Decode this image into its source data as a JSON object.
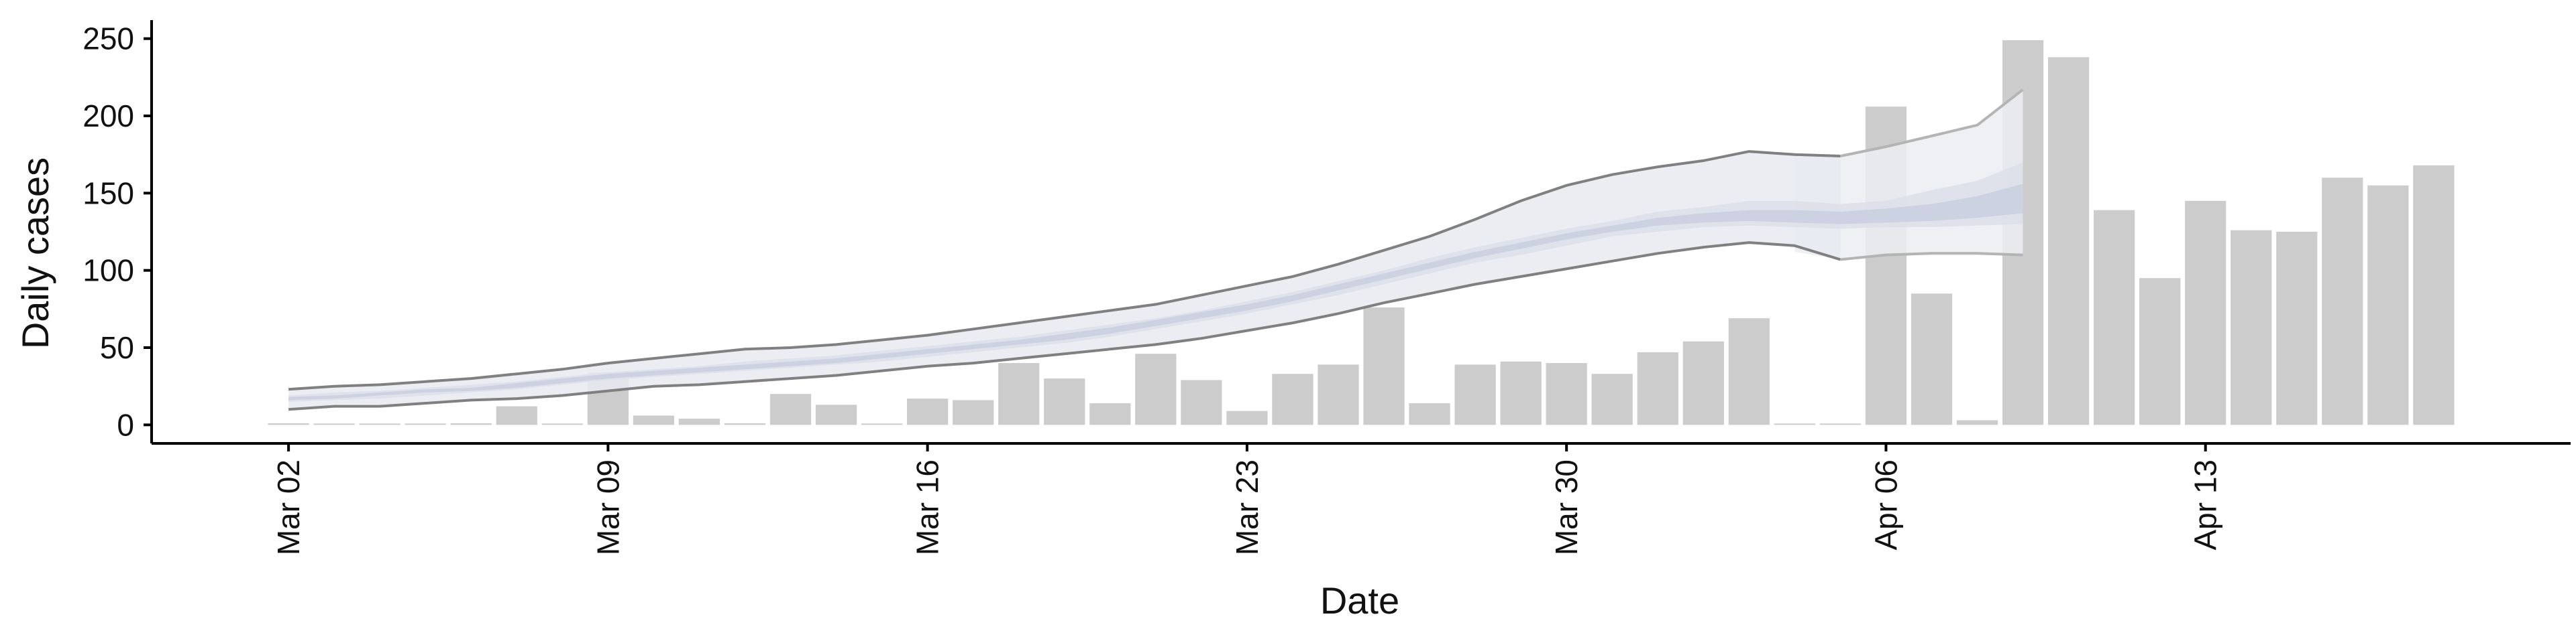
{
  "chart_data": {
    "type": "bar",
    "xlabel": "Date",
    "ylabel": "Daily cases",
    "ylim": [
      -12,
      262
    ],
    "yticks": [
      0,
      50,
      100,
      150,
      200,
      250
    ],
    "xlim": [
      "2020-02-28",
      "2020-04-21"
    ],
    "xticks": [
      {
        "date": "2020-03-02",
        "label": "Mar 02"
      },
      {
        "date": "2020-03-09",
        "label": "Mar 09"
      },
      {
        "date": "2020-03-16",
        "label": "Mar 16"
      },
      {
        "date": "2020-03-23",
        "label": "Mar 23"
      },
      {
        "date": "2020-03-30",
        "label": "Mar 30"
      },
      {
        "date": "2020-04-06",
        "label": "Apr 06"
      },
      {
        "date": "2020-04-13",
        "label": "Apr 13"
      }
    ],
    "bars": {
      "color": "#cccccc",
      "dates": [
        "2020-03-02",
        "2020-03-03",
        "2020-03-04",
        "2020-03-05",
        "2020-03-06",
        "2020-03-07",
        "2020-03-08",
        "2020-03-09",
        "2020-03-10",
        "2020-03-11",
        "2020-03-12",
        "2020-03-13",
        "2020-03-14",
        "2020-03-15",
        "2020-03-16",
        "2020-03-17",
        "2020-03-18",
        "2020-03-19",
        "2020-03-20",
        "2020-03-21",
        "2020-03-22",
        "2020-03-23",
        "2020-03-24",
        "2020-03-25",
        "2020-03-26",
        "2020-03-27",
        "2020-03-28",
        "2020-03-29",
        "2020-03-30",
        "2020-03-31",
        "2020-04-01",
        "2020-04-02",
        "2020-04-03",
        "2020-04-04",
        "2020-04-05",
        "2020-04-06",
        "2020-04-07",
        "2020-04-08",
        "2020-04-09",
        "2020-04-10",
        "2020-04-11",
        "2020-04-12",
        "2020-04-13",
        "2020-04-14",
        "2020-04-15",
        "2020-04-16",
        "2020-04-17",
        "2020-04-18"
      ],
      "values": [
        1,
        0,
        0,
        0,
        1,
        12,
        0,
        34,
        6,
        4,
        1,
        20,
        13,
        0,
        17,
        16,
        40,
        30,
        14,
        46,
        29,
        9,
        33,
        39,
        76,
        14,
        39,
        41,
        40,
        33,
        47,
        54,
        69,
        0,
        0,
        206,
        85,
        3,
        249,
        238,
        139,
        95,
        145,
        126,
        125,
        160,
        155,
        168
      ]
    },
    "series": [
      {
        "type": "interval",
        "fill": "#ecedf2",
        "dates": [
          "2020-04-04",
          "2020-04-05",
          "2020-04-06",
          "2020-04-07",
          "2020-04-08",
          "2020-04-09"
        ],
        "lower": [
          112,
          107,
          110,
          111,
          111,
          110
        ],
        "upper": [
          173,
          174,
          180,
          187,
          194,
          217
        ]
      },
      {
        "type": "interval",
        "fill": "#e8eaf1",
        "dates": [
          "2020-03-02",
          "2020-03-03",
          "2020-03-04",
          "2020-03-05",
          "2020-03-06",
          "2020-03-07",
          "2020-03-08",
          "2020-03-09",
          "2020-03-10",
          "2020-03-11",
          "2020-03-12",
          "2020-03-13",
          "2020-03-14",
          "2020-03-15",
          "2020-03-16",
          "2020-03-17",
          "2020-03-18",
          "2020-03-19",
          "2020-03-20",
          "2020-03-21",
          "2020-03-22",
          "2020-03-23",
          "2020-03-24",
          "2020-03-25",
          "2020-03-26",
          "2020-03-27",
          "2020-03-28",
          "2020-03-29",
          "2020-03-30",
          "2020-03-31",
          "2020-04-01",
          "2020-04-02",
          "2020-04-03",
          "2020-04-04",
          "2020-04-05"
        ],
        "lower": [
          10,
          12,
          12,
          14,
          16,
          17,
          19,
          22,
          25,
          26,
          28,
          30,
          32,
          35,
          38,
          40,
          43,
          46,
          49,
          52,
          56,
          61,
          66,
          72,
          79,
          85,
          91,
          96,
          101,
          106,
          111,
          115,
          118,
          116,
          107
        ],
        "upper": [
          23,
          25,
          26,
          28,
          30,
          33,
          36,
          40,
          43,
          46,
          49,
          50,
          52,
          55,
          58,
          62,
          66,
          70,
          74,
          78,
          84,
          90,
          96,
          104,
          113,
          122,
          133,
          145,
          155,
          162,
          167,
          171,
          177,
          175,
          174
        ]
      },
      {
        "type": "interval",
        "fill": "#dcdfe9",
        "dates": [
          "2020-03-02",
          "2020-03-03",
          "2020-03-04",
          "2020-03-05",
          "2020-03-06",
          "2020-03-07",
          "2020-03-08",
          "2020-03-09",
          "2020-03-10",
          "2020-03-11",
          "2020-03-12",
          "2020-03-13",
          "2020-03-14",
          "2020-03-15",
          "2020-03-16",
          "2020-03-17",
          "2020-03-18",
          "2020-03-19",
          "2020-03-20",
          "2020-03-21",
          "2020-03-22",
          "2020-03-23",
          "2020-03-24",
          "2020-03-25",
          "2020-03-26",
          "2020-03-27",
          "2020-03-28",
          "2020-03-29",
          "2020-03-30",
          "2020-03-31",
          "2020-04-01",
          "2020-04-02",
          "2020-04-03",
          "2020-04-04",
          "2020-04-05",
          "2020-04-06",
          "2020-04-07",
          "2020-04-08",
          "2020-04-09"
        ],
        "lower": [
          15,
          16,
          17,
          19,
          21,
          23,
          26,
          29,
          31,
          33,
          35,
          37,
          39,
          41,
          44,
          47,
          50,
          53,
          57,
          62,
          67,
          72,
          78,
          84,
          91,
          98,
          105,
          110,
          116,
          122,
          125,
          128,
          129,
          128,
          127,
          128,
          128,
          129,
          130
        ],
        "upper": [
          19,
          21,
          22,
          24,
          26,
          28,
          31,
          34,
          36,
          38,
          41,
          43,
          45,
          48,
          51,
          54,
          57,
          61,
          65,
          69,
          74,
          80,
          86,
          93,
          100,
          108,
          115,
          121,
          127,
          132,
          138,
          141,
          145,
          145,
          143,
          145,
          152,
          158,
          170
        ]
      },
      {
        "type": "interval",
        "fill": "#c9cfdf",
        "dates": [
          "2020-03-02",
          "2020-03-03",
          "2020-03-04",
          "2020-03-05",
          "2020-03-06",
          "2020-03-07",
          "2020-03-08",
          "2020-03-09",
          "2020-03-10",
          "2020-03-11",
          "2020-03-12",
          "2020-03-13",
          "2020-03-14",
          "2020-03-15",
          "2020-03-16",
          "2020-03-17",
          "2020-03-18",
          "2020-03-19",
          "2020-03-20",
          "2020-03-21",
          "2020-03-22",
          "2020-03-23",
          "2020-03-24",
          "2020-03-25",
          "2020-03-26",
          "2020-03-27",
          "2020-03-28",
          "2020-03-29",
          "2020-03-30",
          "2020-03-31",
          "2020-04-01",
          "2020-04-02",
          "2020-04-03",
          "2020-04-04",
          "2020-04-05",
          "2020-04-06",
          "2020-04-07",
          "2020-04-08",
          "2020-04-09"
        ],
        "lower": [
          16,
          17,
          19,
          21,
          22,
          24,
          27,
          30,
          32,
          34,
          36,
          38,
          40,
          43,
          46,
          49,
          52,
          55,
          59,
          64,
          69,
          74,
          80,
          87,
          94,
          101,
          108,
          114,
          120,
          125,
          129,
          131,
          132,
          131,
          130,
          131,
          132,
          134,
          137
        ],
        "upper": [
          18,
          19,
          21,
          23,
          24,
          27,
          30,
          33,
          35,
          37,
          39,
          41,
          43,
          46,
          49,
          52,
          55,
          59,
          63,
          68,
          73,
          78,
          84,
          91,
          98,
          105,
          112,
          118,
          124,
          129,
          134,
          137,
          139,
          139,
          138,
          140,
          143,
          148,
          156
        ]
      },
      {
        "type": "line",
        "color": "#808080",
        "dates": [
          "2020-03-02",
          "2020-03-03",
          "2020-03-04",
          "2020-03-05",
          "2020-03-06",
          "2020-03-07",
          "2020-03-08",
          "2020-03-09",
          "2020-03-10",
          "2020-03-11",
          "2020-03-12",
          "2020-03-13",
          "2020-03-14",
          "2020-03-15",
          "2020-03-16",
          "2020-03-17",
          "2020-03-18",
          "2020-03-19",
          "2020-03-20",
          "2020-03-21",
          "2020-03-22",
          "2020-03-23",
          "2020-03-24",
          "2020-03-25",
          "2020-03-26",
          "2020-03-27",
          "2020-03-28",
          "2020-03-29",
          "2020-03-30",
          "2020-03-31",
          "2020-04-01",
          "2020-04-02",
          "2020-04-03",
          "2020-04-04",
          "2020-04-05"
        ],
        "values": [
          23,
          25,
          26,
          28,
          30,
          33,
          36,
          40,
          43,
          46,
          49,
          50,
          52,
          55,
          58,
          62,
          66,
          70,
          74,
          78,
          84,
          90,
          96,
          104,
          113,
          122,
          133,
          145,
          155,
          162,
          167,
          171,
          177,
          175,
          174
        ]
      },
      {
        "type": "line",
        "color": "#808080",
        "dates": [
          "2020-03-02",
          "2020-03-03",
          "2020-03-04",
          "2020-03-05",
          "2020-03-06",
          "2020-03-07",
          "2020-03-08",
          "2020-03-09",
          "2020-03-10",
          "2020-03-11",
          "2020-03-12",
          "2020-03-13",
          "2020-03-14",
          "2020-03-15",
          "2020-03-16",
          "2020-03-17",
          "2020-03-18",
          "2020-03-19",
          "2020-03-20",
          "2020-03-21",
          "2020-03-22",
          "2020-03-23",
          "2020-03-24",
          "2020-03-25",
          "2020-03-26",
          "2020-03-27",
          "2020-03-28",
          "2020-03-29",
          "2020-03-30",
          "2020-03-31",
          "2020-04-01",
          "2020-04-02",
          "2020-04-03",
          "2020-04-04",
          "2020-04-05"
        ],
        "values": [
          10,
          12,
          12,
          14,
          16,
          17,
          19,
          22,
          25,
          26,
          28,
          30,
          32,
          35,
          38,
          40,
          43,
          46,
          49,
          52,
          56,
          61,
          66,
          72,
          79,
          85,
          91,
          96,
          101,
          106,
          111,
          115,
          118,
          116,
          107
        ]
      },
      {
        "type": "line",
        "color": "#b4b4b4",
        "dates": [
          "2020-04-05",
          "2020-04-06",
          "2020-04-07",
          "2020-04-08",
          "2020-04-09"
        ],
        "values": [
          174,
          180,
          187,
          194,
          217
        ]
      },
      {
        "type": "line",
        "color": "#b4b4b4",
        "dates": [
          "2020-04-05",
          "2020-04-06",
          "2020-04-07",
          "2020-04-08",
          "2020-04-09"
        ],
        "values": [
          107,
          110,
          111,
          111,
          110
        ]
      }
    ]
  }
}
